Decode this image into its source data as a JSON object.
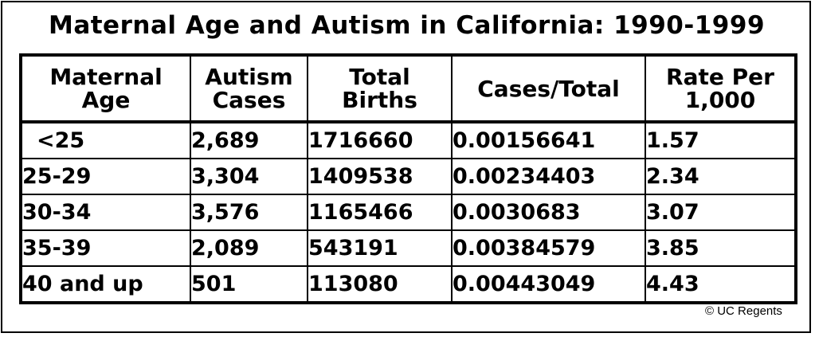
{
  "title": "Maternal Age and Autism in California: 1990-1999",
  "columns": [
    {
      "line1": "Maternal",
      "line2": "Age"
    },
    {
      "line1": "Autism",
      "line2": "Cases"
    },
    {
      "line1": "Total",
      "line2": "Births"
    },
    {
      "line1": "Cases/Total",
      "line2": ""
    },
    {
      "line1": "Rate Per",
      "line2": "1,000"
    }
  ],
  "chart_data": {
    "type": "table",
    "title": "Maternal Age and Autism in California: 1990-1999",
    "headers": [
      "Maternal Age",
      "Autism Cases",
      "Total Births",
      "Cases/Total",
      "Rate Per 1,000"
    ],
    "rows": [
      [
        "<25",
        "2,689",
        "1716660",
        "0.00156641",
        "1.57"
      ],
      [
        "25-29",
        "3,304",
        "1409538",
        "0.00234403",
        "2.34"
      ],
      [
        "30-34",
        "3,576",
        "1165466",
        "0.0030683",
        "3.07"
      ],
      [
        "35-39",
        "2,089",
        "543191",
        "0.00384579",
        "3.85"
      ],
      [
        "40 and up",
        "501",
        "113080",
        "0.00443049",
        "4.43"
      ]
    ]
  },
  "credit": "© UC Regents"
}
